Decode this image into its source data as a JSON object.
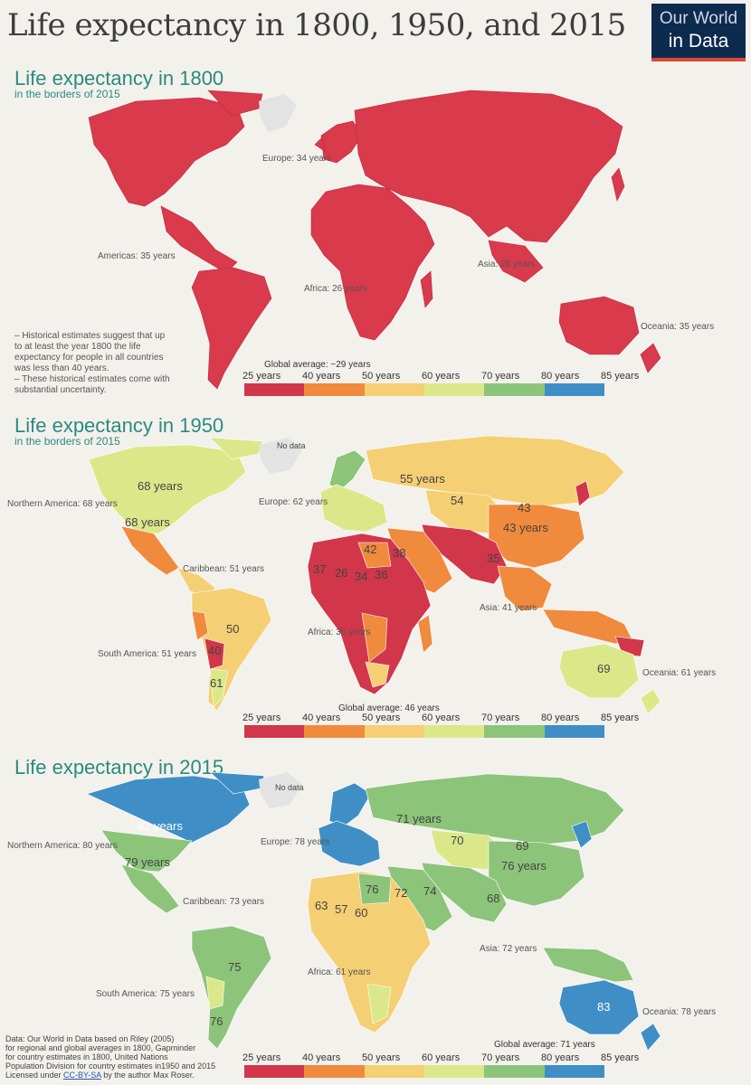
{
  "header": {
    "title": "Life expectancy in 1800, 1950, and 2015",
    "logo_line1": "Our World",
    "logo_line2": "in Data"
  },
  "panels": [
    {
      "title": "Life expectancy in 1800",
      "subtitle": "in the borders of 2015",
      "regions": [
        {
          "name": "Europe: 34 years"
        },
        {
          "name": "Americas: 35 years"
        },
        {
          "name": "Africa: 26 years"
        },
        {
          "name": "Asia: 28 years"
        },
        {
          "name": "Oceania: 35 years"
        }
      ],
      "notes": [
        "– Historical estimates suggest that up",
        "to at least the year 1800 the life",
        "expectancy for people in all countries",
        "was less than 40 years.",
        "– These historical estimates come with",
        "substantial uncertainty."
      ],
      "global_average": "Global average: ~29 years"
    },
    {
      "title": "Life expectancy in 1950",
      "subtitle": "in the borders of 2015",
      "nodata": "No data",
      "regions": [
        {
          "name": "Northern America: 68 years"
        },
        {
          "name": "Europe: 62 years"
        },
        {
          "name": "Caribbean: 51 years"
        },
        {
          "name": "South America: 51 years"
        },
        {
          "name": "Africa: 36 years"
        },
        {
          "name": "Asia: 41 years"
        },
        {
          "name": "Oceania: 61 years"
        }
      ],
      "numbers": [
        "68 years",
        "68 years",
        "55 years",
        "54",
        "43",
        "43 years",
        "35",
        "50",
        "61",
        "40",
        "37",
        "26",
        "34",
        "36",
        "38",
        "42",
        "69"
      ],
      "global_average": "Global average: 46 years"
    },
    {
      "title": "Life expectancy in 2015",
      "subtitle": "",
      "nodata": "No data",
      "regions": [
        {
          "name": "Northern America: 80 years"
        },
        {
          "name": "Europe: 78 years"
        },
        {
          "name": "Caribbean: 73 years"
        },
        {
          "name": "South America: 75 years"
        },
        {
          "name": "Africa: 61 years"
        },
        {
          "name": "Asia: 72 years"
        },
        {
          "name": "Oceania: 78 years"
        }
      ],
      "numbers": [
        "82 years",
        "79 years",
        "71 years",
        "70",
        "69",
        "76 years",
        "68",
        "75",
        "76",
        "83",
        "63",
        "57",
        "60",
        "74",
        "72",
        "76"
      ],
      "global_average": "Global average: 71 years"
    }
  ],
  "legend": {
    "ticks": [
      "25 years",
      "40 years",
      "50 years",
      "60 years",
      "70 years",
      "80 years",
      "85 years"
    ],
    "colors": [
      "#d1364a",
      "#f08a3c",
      "#f5cf73",
      "#dbe88a",
      "#8cc47a",
      "#3f8fc6"
    ]
  },
  "source": {
    "lines": [
      "Data: Our World in Data based on Riley (2005)",
      "for regional and global averages in 1800, Gapminder",
      "for country estimates in 1800, United Nations",
      "Population Division for country estimates in1950 and 2015"
    ],
    "license_prefix": "Licensed under ",
    "license_link": "CC-BY-SA",
    "license_suffix": " by the author Max Roser."
  }
}
